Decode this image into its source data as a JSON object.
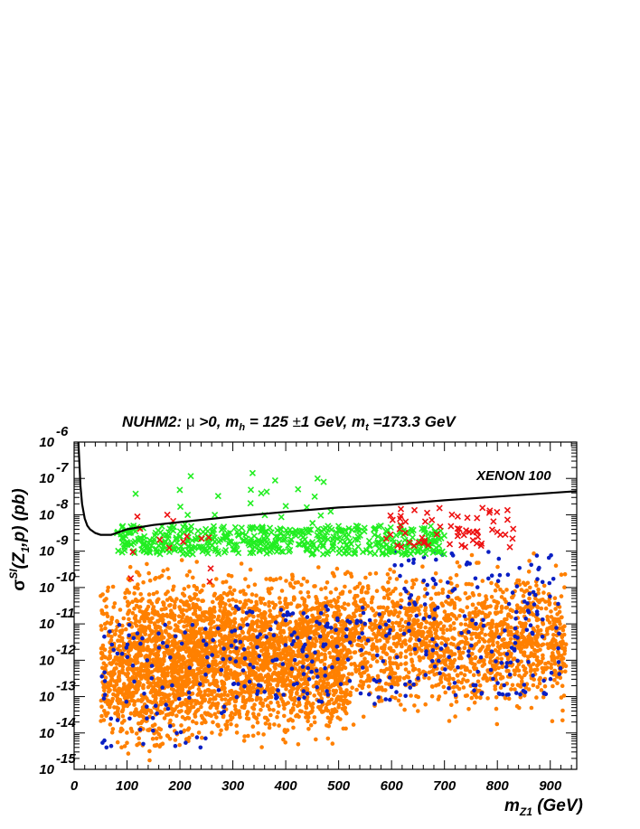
{
  "chart_data": {
    "type": "scatter",
    "title_parts": {
      "model": "NUHM2:",
      "mu": "μ",
      "mu_cond": ">0,",
      "mh_sym": "m",
      "mh_sub": "h",
      "mh_val": "= 125",
      "pm": "±",
      "mh_unit": "1 GeV,",
      "mt_sym": "m",
      "mt_sub": "t",
      "mt_val": "=173.3 GeV"
    },
    "xlabel_parts": {
      "sym": "m",
      "sub": "Z1",
      "unit": "(GeV)"
    },
    "ylabel_parts": {
      "sym": "σ",
      "sup": "SI",
      "arg_open": "(Z",
      "arg_sub": "1",
      "arg_close": ",p) (pb)"
    },
    "xlim": [
      0,
      950
    ],
    "ylim_log10": [
      -15,
      -6
    ],
    "log_y": true,
    "x_ticks": [
      "0",
      "100",
      "200",
      "300",
      "400",
      "500",
      "600",
      "700",
      "800",
      "900"
    ],
    "y_ticks": [
      {
        "base": "10",
        "exp": "-6"
      },
      {
        "base": "10",
        "exp": "-7"
      },
      {
        "base": "10",
        "exp": "-8"
      },
      {
        "base": "10",
        "exp": "-9"
      },
      {
        "base": "10",
        "exp": "-10"
      },
      {
        "base": "10",
        "exp": "-11"
      },
      {
        "base": "10",
        "exp": "-12"
      },
      {
        "base": "10",
        "exp": "-13"
      },
      {
        "base": "10",
        "exp": "-14"
      },
      {
        "base": "10",
        "exp": "-15"
      }
    ],
    "limit_curve": {
      "name": "XENON 100",
      "x": [
        8,
        10,
        12,
        15,
        20,
        25,
        30,
        40,
        50,
        70,
        100,
        150,
        200,
        300,
        400,
        500,
        600,
        700,
        800,
        950
      ],
      "log10_y": [
        -6.0,
        -6.6,
        -7.2,
        -7.7,
        -8.1,
        -8.3,
        -8.4,
        -8.5,
        -8.55,
        -8.55,
        -8.4,
        -8.28,
        -8.2,
        -8.05,
        -7.92,
        -7.8,
        -7.72,
        -7.6,
        -7.5,
        -7.35
      ]
    },
    "colors": {
      "orange": "#ff8000",
      "blue": "#0a1fc4",
      "green": "#22ee22",
      "red": "#ee1111",
      "curve": "#000000"
    },
    "series": [
      {
        "marker": "dot",
        "color_key": "orange",
        "description_points": "dense band of points",
        "clusters": [
          {
            "x": [
              50,
              100
            ],
            "y": [
              -14.9,
              -9.5
            ],
            "n": 240
          },
          {
            "x": [
              100,
              220
            ],
            "y": [
              -15.0,
              -9.0
            ],
            "n": 1000
          },
          {
            "x": [
              220,
              520
            ],
            "y": [
              -14.7,
              -9.0
            ],
            "n": 2100
          },
          {
            "x": [
              520,
              930
            ],
            "y": [
              -14.0,
              -8.9
            ],
            "n": 1500
          }
        ]
      },
      {
        "marker": "dot",
        "color_key": "blue",
        "clusters": [
          {
            "x": [
              50,
              300
            ],
            "y": [
              -14.4,
              -11.0
            ],
            "n": 90
          },
          {
            "x": [
              300,
              600
            ],
            "y": [
              -13.2,
              -10.5
            ],
            "n": 150
          },
          {
            "x": [
              600,
              920
            ],
            "y": [
              -13.0,
              -9.0
            ],
            "n": 180
          }
        ]
      },
      {
        "marker": "cross",
        "color_key": "green",
        "clusters": [
          {
            "x": [
              80,
              700
            ],
            "y": [
              -9.1,
              -8.3
            ],
            "n": 520
          },
          {
            "x": [
              100,
              500
            ],
            "y": [
              -8.3,
              -6.8
            ],
            "n": 25
          }
        ]
      },
      {
        "marker": "cross",
        "color_key": "red",
        "clusters": [
          {
            "x": [
              580,
              830
            ],
            "y": [
              -8.9,
              -7.8
            ],
            "n": 65
          },
          {
            "x": [
              80,
              280
            ],
            "y": [
              -10.0,
              -8.0
            ],
            "n": 14
          }
        ]
      }
    ]
  }
}
